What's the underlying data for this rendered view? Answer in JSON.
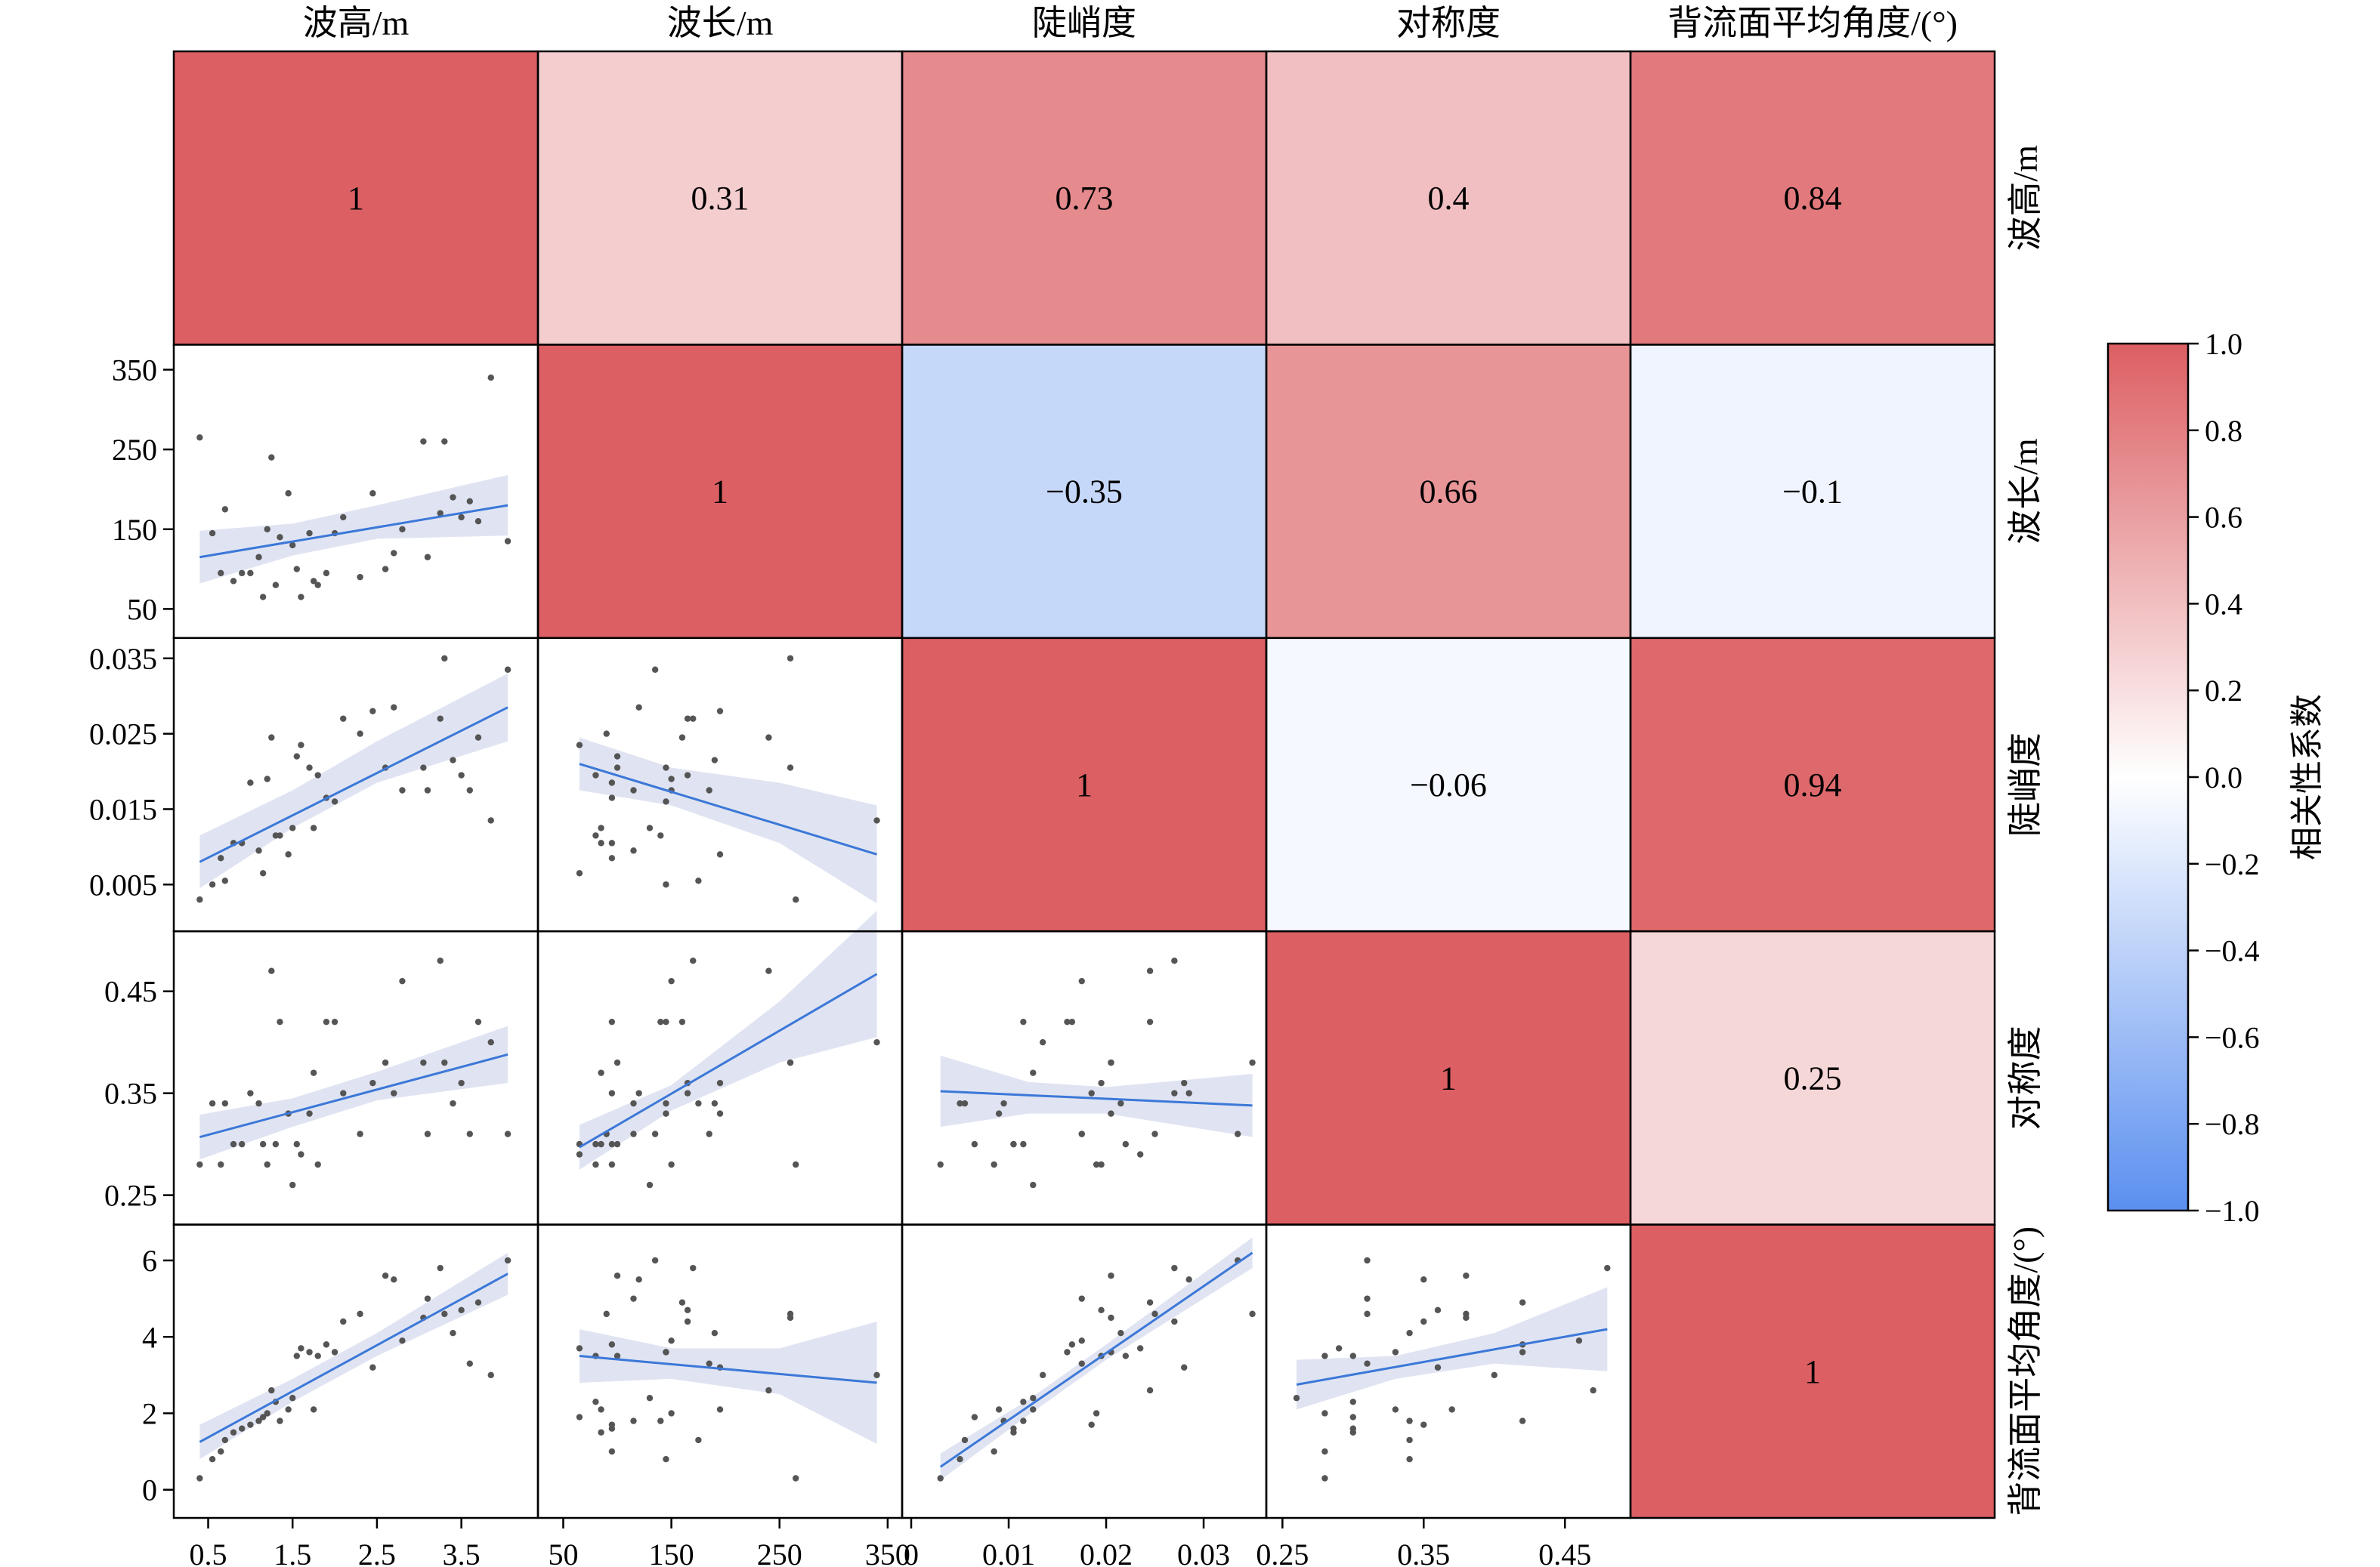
{
  "chart_data": {
    "type": "correlation-matrix",
    "variables": [
      "波高/m",
      "波长/m",
      "陡峭度",
      "对称度",
      "背流面平均角度/(°)"
    ],
    "correlation": [
      [
        1,
        0.31,
        0.73,
        0.4,
        0.84
      ],
      [
        0.31,
        1,
        -0.35,
        0.66,
        -0.1
      ],
      [
        0.73,
        -0.35,
        1,
        -0.06,
        0.94
      ],
      [
        0.4,
        0.66,
        -0.06,
        1,
        0.25
      ],
      [
        0.84,
        -0.1,
        0.94,
        0.25,
        1
      ]
    ],
    "correlation_labels": [
      [
        "1",
        "0.31",
        "0.73",
        "0.4",
        "0.84"
      ],
      [
        "0.31",
        "1",
        "−0.35",
        "0.66",
        "−0.1"
      ],
      [
        "0.73",
        "−0.35",
        "1",
        "−0.06",
        "0.94"
      ],
      [
        "0.4",
        "0.66",
        "−0.06",
        "1",
        "0.25"
      ],
      [
        "0.84",
        "−0.1",
        "0.94",
        "0.25",
        "1"
      ]
    ],
    "colorbar": {
      "label": "相关性系数",
      "range": [
        -1,
        1
      ],
      "ticks": [
        "1.0",
        "0.8",
        "0.6",
        "0.4",
        "0.2",
        "0.0",
        "−0.2",
        "−0.4",
        "−0.6",
        "−0.8",
        "−1.0"
      ],
      "colors": {
        "negative": "#5b8ff0",
        "zero": "#ffffff",
        "positive": "#dc5f63"
      }
    },
    "axes": {
      "x": [
        {
          "range": [
            0.2,
            4.3
          ],
          "ticks": [
            0.5,
            1.5,
            2.5,
            3.5
          ],
          "tick_labels": [
            "0.5",
            "1.5",
            "2.5",
            "3.5"
          ]
        },
        {
          "range": [
            35,
            355
          ],
          "ticks": [
            50,
            150,
            250,
            350
          ],
          "tick_labels": [
            "50",
            "150",
            "250",
            "350"
          ]
        },
        {
          "range": [
            0,
            0.0355
          ],
          "ticks": [
            0,
            0.01,
            0.02,
            0.03
          ],
          "tick_labels": [
            "0",
            "0.01",
            "0.02",
            "0.03"
          ]
        },
        {
          "range": [
            0.245,
            0.49
          ],
          "ticks": [
            0.25,
            0.35,
            0.45
          ],
          "tick_labels": [
            "0.25",
            "0.35",
            "0.45"
          ]
        }
      ],
      "y": [
        null,
        {
          "range": [
            25,
            370
          ],
          "ticks": [
            50,
            150,
            250,
            350
          ],
          "tick_labels": [
            "50",
            "150",
            "250",
            "350"
          ]
        },
        {
          "range": [
            0,
            0.0365
          ],
          "ticks": [
            0.005,
            0.015,
            0.025,
            0.035
          ],
          "tick_labels": [
            "0.005",
            "0.015",
            "0.025",
            "0.035"
          ]
        },
        {
          "range": [
            0.23,
            0.5
          ],
          "ticks": [
            0.25,
            0.35,
            0.45
          ],
          "tick_labels": [
            "0.25",
            "0.35",
            "0.45"
          ]
        },
        {
          "range": [
            -0.5,
            6.7
          ],
          "ticks": [
            0,
            2,
            4,
            6
          ],
          "tick_labels": [
            "0",
            "2",
            "4",
            "6"
          ]
        }
      ]
    },
    "observations": {
      "h": [
        0.4,
        0.55,
        0.65,
        0.7,
        0.8,
        0.9,
        1.0,
        1.1,
        1.15,
        1.2,
        1.25,
        1.3,
        1.35,
        1.45,
        1.5,
        1.55,
        1.6,
        1.7,
        1.75,
        1.8,
        1.9,
        2.0,
        2.1,
        2.3,
        2.45,
        2.6,
        2.7,
        2.8,
        3.05,
        3.1,
        3.25,
        3.3,
        3.4,
        3.5,
        3.6,
        3.7,
        3.85,
        4.05
      ],
      "w": [
        265,
        145,
        95,
        175,
        85,
        95,
        95,
        115,
        65,
        150,
        240,
        80,
        140,
        195,
        130,
        100,
        65,
        145,
        85,
        80,
        95,
        145,
        165,
        90,
        195,
        100,
        120,
        150,
        260,
        115,
        170,
        260,
        190,
        165,
        185,
        160,
        340,
        135
      ],
      "s": [
        0.003,
        0.005,
        0.0085,
        0.0055,
        0.0105,
        0.0105,
        0.0185,
        0.0095,
        0.0065,
        0.019,
        0.0245,
        0.0115,
        0.0115,
        0.009,
        0.0125,
        0.022,
        0.0235,
        0.0205,
        0.0125,
        0.0195,
        0.0165,
        0.016,
        0.027,
        0.025,
        0.028,
        0.0205,
        0.0285,
        0.0175,
        0.0205,
        0.0175,
        0.027,
        0.035,
        0.0215,
        0.0195,
        0.0175,
        0.0245,
        0.0135,
        0.0335
      ],
      "y": [
        0.28,
        0.34,
        0.28,
        0.34,
        0.3,
        0.3,
        0.35,
        0.34,
        0.3,
        0.28,
        0.47,
        0.3,
        0.42,
        0.33,
        0.26,
        0.3,
        0.29,
        0.33,
        0.37,
        0.28,
        0.42,
        0.42,
        0.35,
        0.31,
        0.36,
        0.38,
        0.35,
        0.46,
        0.38,
        0.31,
        0.48,
        0.38,
        0.34,
        0.36,
        0.31,
        0.42,
        0.4,
        0.31
      ],
      "a": [
        0.3,
        0.8,
        1.0,
        1.3,
        1.5,
        1.6,
        1.7,
        1.8,
        1.9,
        2.0,
        2.6,
        2.3,
        1.8,
        2.1,
        2.4,
        3.5,
        3.7,
        3.6,
        2.1,
        3.5,
        3.8,
        3.6,
        4.4,
        4.6,
        3.2,
        5.6,
        5.5,
        3.9,
        4.5,
        5.0,
        5.8,
        4.6,
        4.1,
        4.7,
        3.3,
        4.9,
        3.0,
        6.0
      ]
    },
    "fits": [
      {
        "row": 1,
        "col": 0,
        "x": [
          0.4,
          4.05
        ],
        "y": [
          115,
          180
        ],
        "band": [
          [
            0.4,
            82,
            148
          ],
          [
            1.5,
            117,
            157
          ],
          [
            2.5,
            138,
            180
          ],
          [
            4.05,
            142,
            218
          ]
        ]
      },
      {
        "row": 2,
        "col": 0,
        "x": [
          0.4,
          4.05
        ],
        "y": [
          0.008,
          0.0285
        ],
        "band": [
          [
            0.4,
            0.0045,
            0.0115
          ],
          [
            1.5,
            0.0125,
            0.0175
          ],
          [
            2.5,
            0.0185,
            0.024
          ],
          [
            4.05,
            0.024,
            0.033
          ]
        ]
      },
      {
        "row": 2,
        "col": 1,
        "x": [
          65,
          340
        ],
        "y": [
          0.021,
          0.009
        ],
        "band": [
          [
            65,
            0.0175,
            0.0245
          ],
          [
            150,
            0.0155,
            0.0205
          ],
          [
            250,
            0.0105,
            0.0185
          ],
          [
            340,
            0.0025,
            0.0155
          ]
        ]
      },
      {
        "row": 3,
        "col": 0,
        "x": [
          0.4,
          4.05
        ],
        "y": [
          0.307,
          0.388
        ],
        "band": [
          [
            0.4,
            0.285,
            0.329
          ],
          [
            1.5,
            0.317,
            0.345
          ],
          [
            2.5,
            0.343,
            0.371
          ],
          [
            4.05,
            0.36,
            0.416
          ]
        ]
      },
      {
        "row": 3,
        "col": 1,
        "x": [
          65,
          340
        ],
        "y": [
          0.297,
          0.467
        ],
        "band": [
          [
            65,
            0.275,
            0.319
          ],
          [
            150,
            0.333,
            0.358
          ],
          [
            250,
            0.38,
            0.44
          ],
          [
            340,
            0.405,
            0.529
          ]
        ]
      },
      {
        "row": 3,
        "col": 2,
        "x": [
          0.003,
          0.035
        ],
        "y": [
          0.352,
          0.338
        ],
        "band": [
          [
            0.003,
            0.317,
            0.387
          ],
          [
            0.012,
            0.33,
            0.361
          ],
          [
            0.02,
            0.33,
            0.356
          ],
          [
            0.035,
            0.307,
            0.369
          ]
        ]
      },
      {
        "row": 4,
        "col": 0,
        "x": [
          0.4,
          4.05
        ],
        "y": [
          1.25,
          5.65
        ],
        "band": [
          [
            0.4,
            0.8,
            1.7
          ],
          [
            1.5,
            2.3,
            2.9
          ],
          [
            2.5,
            3.5,
            4.1
          ],
          [
            4.05,
            5.1,
            6.2
          ]
        ]
      },
      {
        "row": 4,
        "col": 1,
        "x": [
          65,
          340
        ],
        "y": [
          3.5,
          2.8
        ],
        "band": [
          [
            65,
            2.8,
            4.2
          ],
          [
            150,
            2.9,
            3.7
          ],
          [
            250,
            2.5,
            3.7
          ],
          [
            340,
            1.2,
            4.4
          ]
        ]
      },
      {
        "row": 4,
        "col": 2,
        "x": [
          0.003,
          0.035
        ],
        "y": [
          0.6,
          6.2
        ],
        "band": [
          [
            0.003,
            0.25,
            0.95
          ],
          [
            0.012,
            1.95,
            2.35
          ],
          [
            0.02,
            3.4,
            3.8
          ],
          [
            0.035,
            5.8,
            6.6
          ]
        ]
      },
      {
        "row": 4,
        "col": 3,
        "x": [
          0.26,
          0.48
        ],
        "y": [
          2.75,
          4.2
        ],
        "band": [
          [
            0.26,
            2.1,
            3.4
          ],
          [
            0.33,
            2.9,
            3.5
          ],
          [
            0.4,
            3.3,
            4.1
          ],
          [
            0.48,
            3.1,
            5.3
          ]
        ]
      }
    ]
  }
}
